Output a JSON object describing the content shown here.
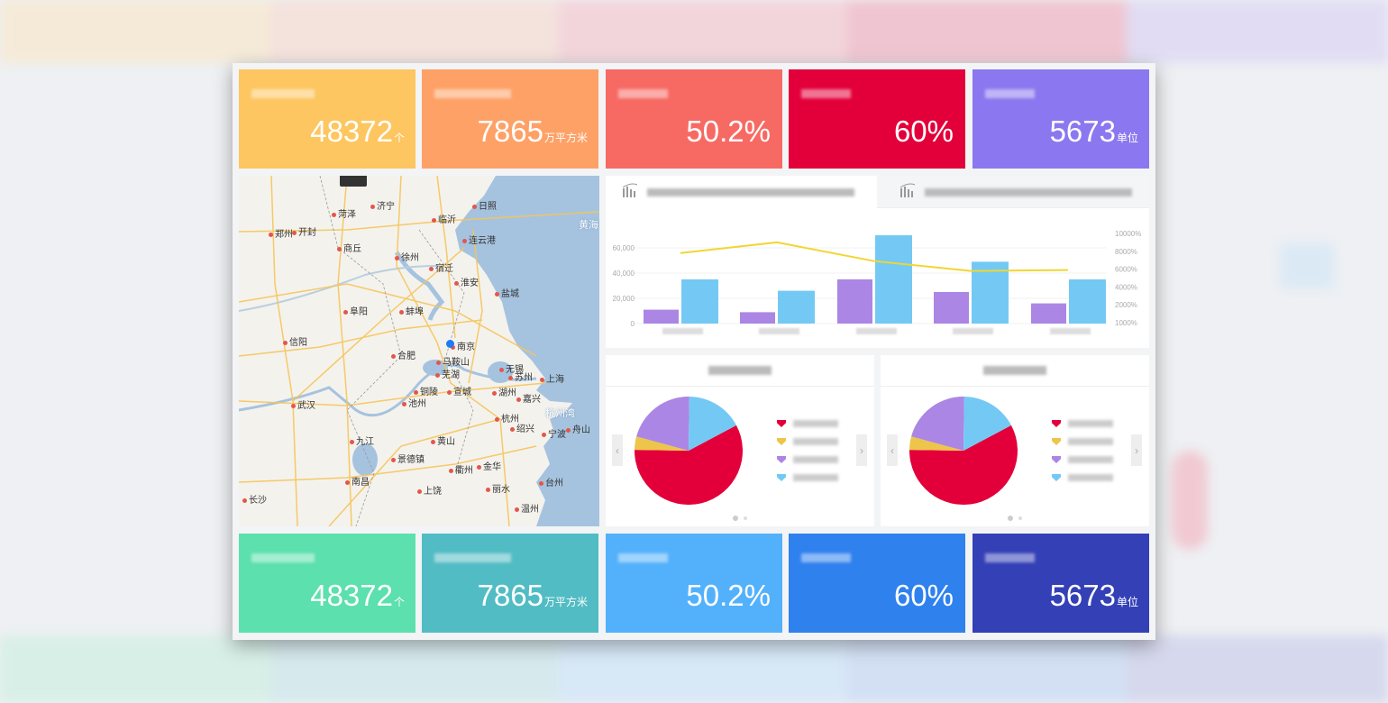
{
  "top_cards": [
    {
      "value": "48372",
      "unit": "个",
      "color": "#fdc660"
    },
    {
      "value": "7865",
      "unit": "万平方米",
      "color": "#fea166"
    },
    {
      "value": "50.2%",
      "unit": "",
      "color": "#f76a63"
    },
    {
      "value": "60%",
      "unit": "",
      "color": "#e3003a"
    },
    {
      "value": "5673",
      "unit": "单位",
      "color": "#8b77ef"
    }
  ],
  "bottom_cards": [
    {
      "value": "48372",
      "unit": "个",
      "color": "#5ce0ad"
    },
    {
      "value": "7865",
      "unit": "万平方米",
      "color": "#52bcc4"
    },
    {
      "value": "50.2%",
      "unit": "",
      "color": "#53b1fc"
    },
    {
      "value": "60%",
      "unit": "",
      "color": "#2f81ee"
    },
    {
      "value": "5673",
      "unit": "单位",
      "color": "#3440b6"
    }
  ],
  "map": {
    "sea_labels": [
      "黄海",
      "杭州湾"
    ],
    "cities": [
      "郑州",
      "开封",
      "菏泽",
      "济宁",
      "临沂",
      "日照",
      "连云港",
      "徐州",
      "商丘",
      "宿迁",
      "淮安",
      "盐城",
      "蚌埠",
      "阜阳",
      "信阳",
      "合肥",
      "南京",
      "马鞍山",
      "芜湖",
      "无锡",
      "苏州",
      "上海",
      "湖州",
      "嘉兴",
      "铜陵",
      "宣城",
      "池州",
      "武汉",
      "杭州",
      "绍兴",
      "宁波",
      "舟山",
      "九江",
      "黄山",
      "景德镇",
      "衢州",
      "金华",
      "南昌",
      "台州",
      "丽水",
      "上饶",
      "长沙",
      "温州"
    ]
  },
  "chart_data": {
    "type": "bar",
    "left_ticks": [
      "0",
      "20,000",
      "40,000",
      "60,000"
    ],
    "right_ticks": [
      "1000%",
      "2000%",
      "4000%",
      "6000%",
      "8000%",
      "10000%"
    ],
    "ylim": [
      0,
      60000
    ],
    "y2lim": [
      0,
      10000
    ],
    "series": [
      {
        "type": "bar",
        "color": "#ab86e4",
        "values": [
          11000,
          9000,
          35000,
          25000,
          16000
        ]
      },
      {
        "type": "bar",
        "color": "#74c9f4",
        "values": [
          35000,
          26000,
          70000,
          49000,
          35000
        ]
      },
      {
        "type": "line",
        "color": "#f1d631",
        "axis": "right",
        "values": [
          7800,
          9000,
          6900,
          5800,
          5900
        ]
      }
    ]
  },
  "pies": [
    {
      "slices": [
        {
          "color": "#e3003a",
          "value": 58
        },
        {
          "color": "#edc54a",
          "value": 4
        },
        {
          "color": "#ab86e4",
          "value": 21
        },
        {
          "color": "#74c9f4",
          "value": 17
        }
      ]
    },
    {
      "slices": [
        {
          "color": "#e3003a",
          "value": 58
        },
        {
          "color": "#edc54a",
          "value": 4
        },
        {
          "color": "#ab86e4",
          "value": 21
        },
        {
          "color": "#74c9f4",
          "value": 17
        }
      ]
    }
  ],
  "icons": {
    "prev": "‹",
    "next": "›"
  }
}
